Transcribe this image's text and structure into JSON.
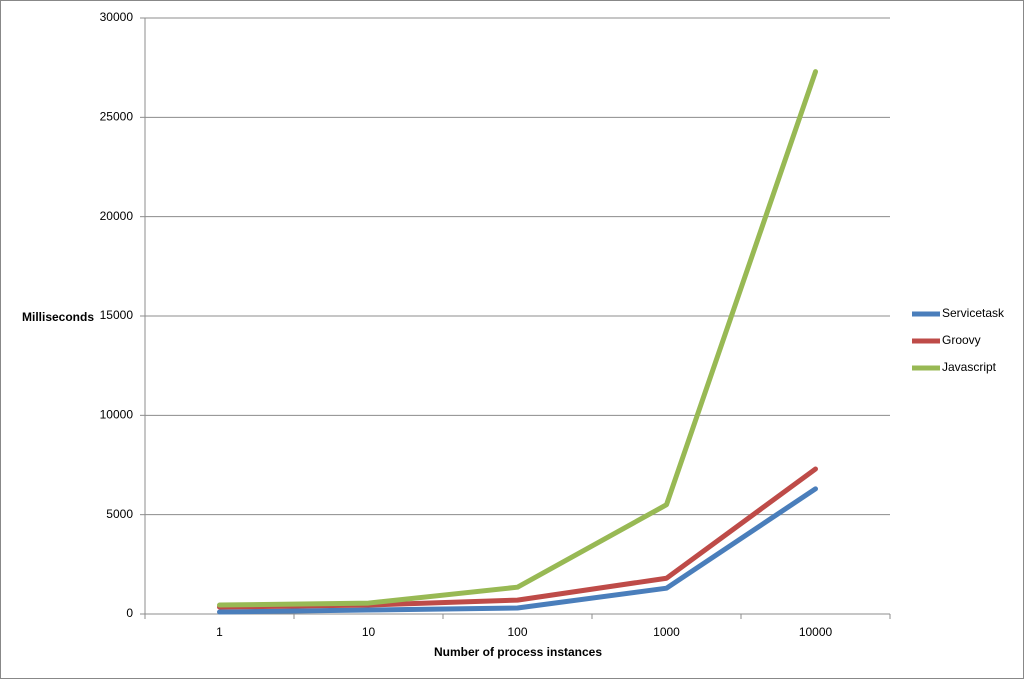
{
  "chart_data": {
    "type": "line",
    "x_label": "Number of process instances",
    "y_label": "Milliseconds",
    "categories": [
      "1",
      "10",
      "100",
      "1000",
      "10000"
    ],
    "series": [
      {
        "name": "Servicetask",
        "color": "#4a7ebb",
        "values": [
          100,
          200,
          300,
          1300,
          6300
        ]
      },
      {
        "name": "Groovy",
        "color": "#be4b48",
        "values": [
          350,
          450,
          700,
          1800,
          7300
        ]
      },
      {
        "name": "Javascript",
        "color": "#98b954",
        "values": [
          450,
          550,
          1350,
          5500,
          27300
        ]
      }
    ],
    "ylim": [
      0,
      30000
    ],
    "yticks": [
      0,
      5000,
      10000,
      15000,
      20000,
      25000,
      30000
    ],
    "grid": true,
    "legend": "right"
  }
}
